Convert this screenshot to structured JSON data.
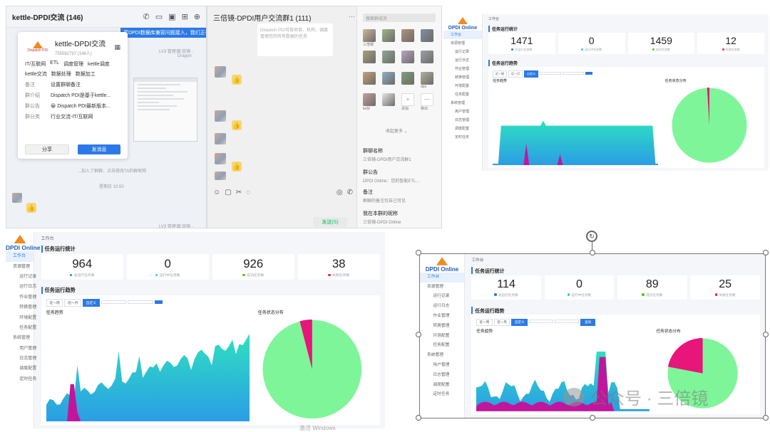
{
  "wechat1": {
    "title": "kettle-DPDI交流 (146)",
    "notice": "享DPDI数据库兼容问题接入，我们正在统",
    "card": {
      "group_name": "kettle-DPDI交流",
      "group_id": "755592797 (146人)",
      "logo_text": "Dispatch PDI",
      "tags": [
        "IT/互联网",
        "ETL",
        "调度管理",
        "kettle调度",
        "kettle交流",
        "数据处理",
        "数据加工"
      ],
      "rows": [
        {
          "k": "备注",
          "v": "设置群聊备注"
        },
        {
          "k": "群介绍",
          "v": "Dispatch PDI是基于kettle..."
        },
        {
          "k": "群公告",
          "v": "😀 Dispatch PDI最新版本..."
        },
        {
          "k": "群分类",
          "v": "行业交流-IT/互联网"
        }
      ],
      "share_label": "分享",
      "send_label": "发消息"
    },
    "join_msg": "...加入了群聊，点击修改TA的群昵称",
    "time_msg": "星期日 10:50",
    "tag1": "LV3 管理员",
    "tag2": "三倍镜 - Dragon"
  },
  "wechat2": {
    "title": "三倍镜-DPDI用户交流群1 (111)",
    "more": "···",
    "bubble_text": "Dispatch PDI可按项目、机构、调度管理您的所有数据的任务",
    "search_placeholder": "搜索群成员",
    "collapse_label": "收起更多 ⌄",
    "member_names": [
      "三倍镜",
      "",
      "",
      "",
      "",
      "",
      "",
      "",
      "",
      "",
      "",
      "dpu",
      "ke好",
      "",
      "添加",
      "移出"
    ],
    "group_name_k": "群聊名称",
    "group_name_v": "三倍镜-DPDI用户交流群1",
    "notice_k": "群公告",
    "notice_v": "DPDI Online：您的智能ETL...",
    "remark_k": "备注",
    "remark_v": "群聊的备注仅自己可见",
    "nickname_k": "我在本群的昵称",
    "nickname_v": "三倍镜-DPDI Online",
    "send_label": "发送(S)"
  },
  "dash_top": {
    "logo": "DPDI Online",
    "breadcrumb": "工作台",
    "section1": "任务运行统计",
    "section2": "任务运行趋势",
    "chart1_title": "任务趋势",
    "chart2_title": "任务状态分布",
    "stats": [
      {
        "num": "1471",
        "lbl": "总运行任务数"
      },
      {
        "num": "0",
        "lbl": "运行中任务数"
      },
      {
        "num": "1459",
        "lbl": "成功任务数"
      },
      {
        "num": "12",
        "lbl": "失败任务数"
      }
    ],
    "nav": [
      "工作台",
      "资源管理",
      "运行记录",
      "运行日志",
      "作业管理",
      "转换管理",
      "环境配置",
      "任务配置",
      "系统管理",
      "用户管理",
      "日志管理",
      "调度配置",
      "定时任务"
    ],
    "tabs": [
      "近一周",
      "近一月",
      "自定义"
    ]
  },
  "dash_left": {
    "logo": "DPDI Online",
    "breadcrumb": "工作台",
    "section1": "任务运行统计",
    "section2": "任务运行趋势",
    "chart1_title": "任务趋势",
    "chart2_title": "任务状态分布",
    "stats": [
      {
        "num": "964",
        "lbl": "总运行任务数"
      },
      {
        "num": "0",
        "lbl": "运行中任务数"
      },
      {
        "num": "926",
        "lbl": "成功任务数"
      },
      {
        "num": "38",
        "lbl": "失败任务数"
      }
    ],
    "nav": [
      "工作台",
      "资源管理",
      "运行记录",
      "运行日志",
      "作业管理",
      "转换管理",
      "环境配置",
      "任务配置",
      "系统管理",
      "用户管理",
      "日志管理",
      "调度配置",
      "定时任务"
    ],
    "tabs": [
      "近一周",
      "近一月",
      "自定义"
    ]
  },
  "dash_right": {
    "logo": "DPDI Online",
    "breadcrumb": "工作台",
    "section1": "任务运行统计",
    "section2": "任务运行趋势",
    "chart1_title": "任务趋势",
    "chart2_title": "任务状态分布",
    "stats": [
      {
        "num": "114",
        "lbl": "总运行任务数"
      },
      {
        "num": "0",
        "lbl": "运行中任务数"
      },
      {
        "num": "89",
        "lbl": "成功任务数"
      },
      {
        "num": "25",
        "lbl": "失败任务数"
      }
    ],
    "nav": [
      "工作台",
      "资源管理",
      "运行记录",
      "运行日志",
      "作业管理",
      "转换管理",
      "环境配置",
      "任务配置",
      "系统管理",
      "用户管理",
      "日志管理",
      "调度配置",
      "定时任务"
    ],
    "tabs": [
      "近一周",
      "近一月",
      "自定义"
    ],
    "query_label": "查询"
  },
  "watermark": "公众号 · 三倍镜",
  "activate": "激活 Windows",
  "colors": {
    "accent": "#2b79e6",
    "teal": "#2fd3c8",
    "magenta": "#c1169b",
    "green": "#7ff59a",
    "pink": "#e8157a"
  }
}
